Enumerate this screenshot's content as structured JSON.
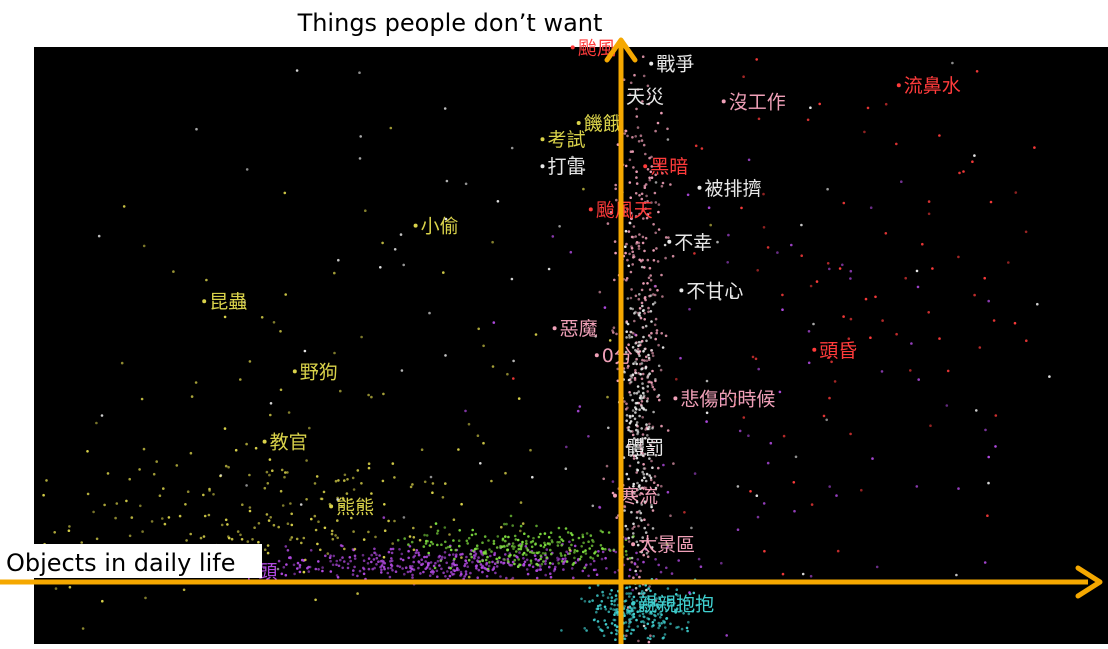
{
  "chart_data": {
    "type": "scatter",
    "title": "",
    "xlabel": "Objects in daily life",
    "ylabel": "Things people don’t want",
    "grid": false,
    "colors": {
      "background": "#000000",
      "axis": "#f5a800",
      "yellow": "#d9d24a",
      "white": "#e8e8e8",
      "red": "#ff3b3b",
      "pink": "#f0a0b8",
      "purple": "#b04ae0",
      "green": "#80e040",
      "cyan": "#40d0d0"
    },
    "labeled_points": [
      {
        "label": "颱風",
        "color": "red",
        "x": -0.08,
        "y": 0.99
      },
      {
        "label": "戰爭",
        "color": "white",
        "x": 0.05,
        "y": 0.96
      },
      {
        "label": "天災",
        "color": "white",
        "x": 0.0,
        "y": 0.9
      },
      {
        "label": "沒工作",
        "color": "pink",
        "x": 0.17,
        "y": 0.89
      },
      {
        "label": "流鼻水",
        "color": "red",
        "x": 0.46,
        "y": 0.92
      },
      {
        "label": "饑餓",
        "color": "yellow",
        "x": -0.07,
        "y": 0.85
      },
      {
        "label": "考試",
        "color": "yellow",
        "x": -0.13,
        "y": 0.82
      },
      {
        "label": "打雷",
        "color": "white",
        "x": -0.13,
        "y": 0.77
      },
      {
        "label": "黑暗",
        "color": "red",
        "x": 0.04,
        "y": 0.77
      },
      {
        "label": "被排擠",
        "color": "white",
        "x": 0.13,
        "y": 0.73
      },
      {
        "label": "颱風天",
        "color": "red",
        "x": -0.05,
        "y": 0.69
      },
      {
        "label": "小偷",
        "color": "yellow",
        "x": -0.34,
        "y": 0.66
      },
      {
        "label": "不幸",
        "color": "white",
        "x": 0.08,
        "y": 0.63
      },
      {
        "label": "昆蟲",
        "color": "yellow",
        "x": -0.69,
        "y": 0.52
      },
      {
        "label": "不甘心",
        "color": "white",
        "x": 0.1,
        "y": 0.54
      },
      {
        "label": "惡魔",
        "color": "pink",
        "x": -0.11,
        "y": 0.47
      },
      {
        "label": "頭昏",
        "color": "red",
        "x": 0.32,
        "y": 0.43
      },
      {
        "label": "0分",
        "color": "pink",
        "x": -0.04,
        "y": 0.42
      },
      {
        "label": "野狗",
        "color": "yellow",
        "x": -0.54,
        "y": 0.39
      },
      {
        "label": "悲傷的時候",
        "color": "pink",
        "x": 0.09,
        "y": 0.34
      },
      {
        "label": "教官",
        "color": "yellow",
        "x": -0.59,
        "y": 0.26
      },
      {
        "label": "體罰",
        "color": "white",
        "x": 0.0,
        "y": 0.25
      },
      {
        "label": "寒流",
        "color": "pink",
        "x": -0.01,
        "y": 0.16
      },
      {
        "label": "熊熊",
        "color": "yellow",
        "x": -0.48,
        "y": 0.14
      },
      {
        "label": "太景區",
        "color": "pink",
        "x": 0.02,
        "y": 0.07
      },
      {
        "label": "木頭",
        "color": "purple",
        "x": -0.64,
        "y": 0.02
      },
      {
        "label": "親親抱抱",
        "color": "cyan",
        "x": 0.02,
        "y": -0.04
      }
    ]
  }
}
